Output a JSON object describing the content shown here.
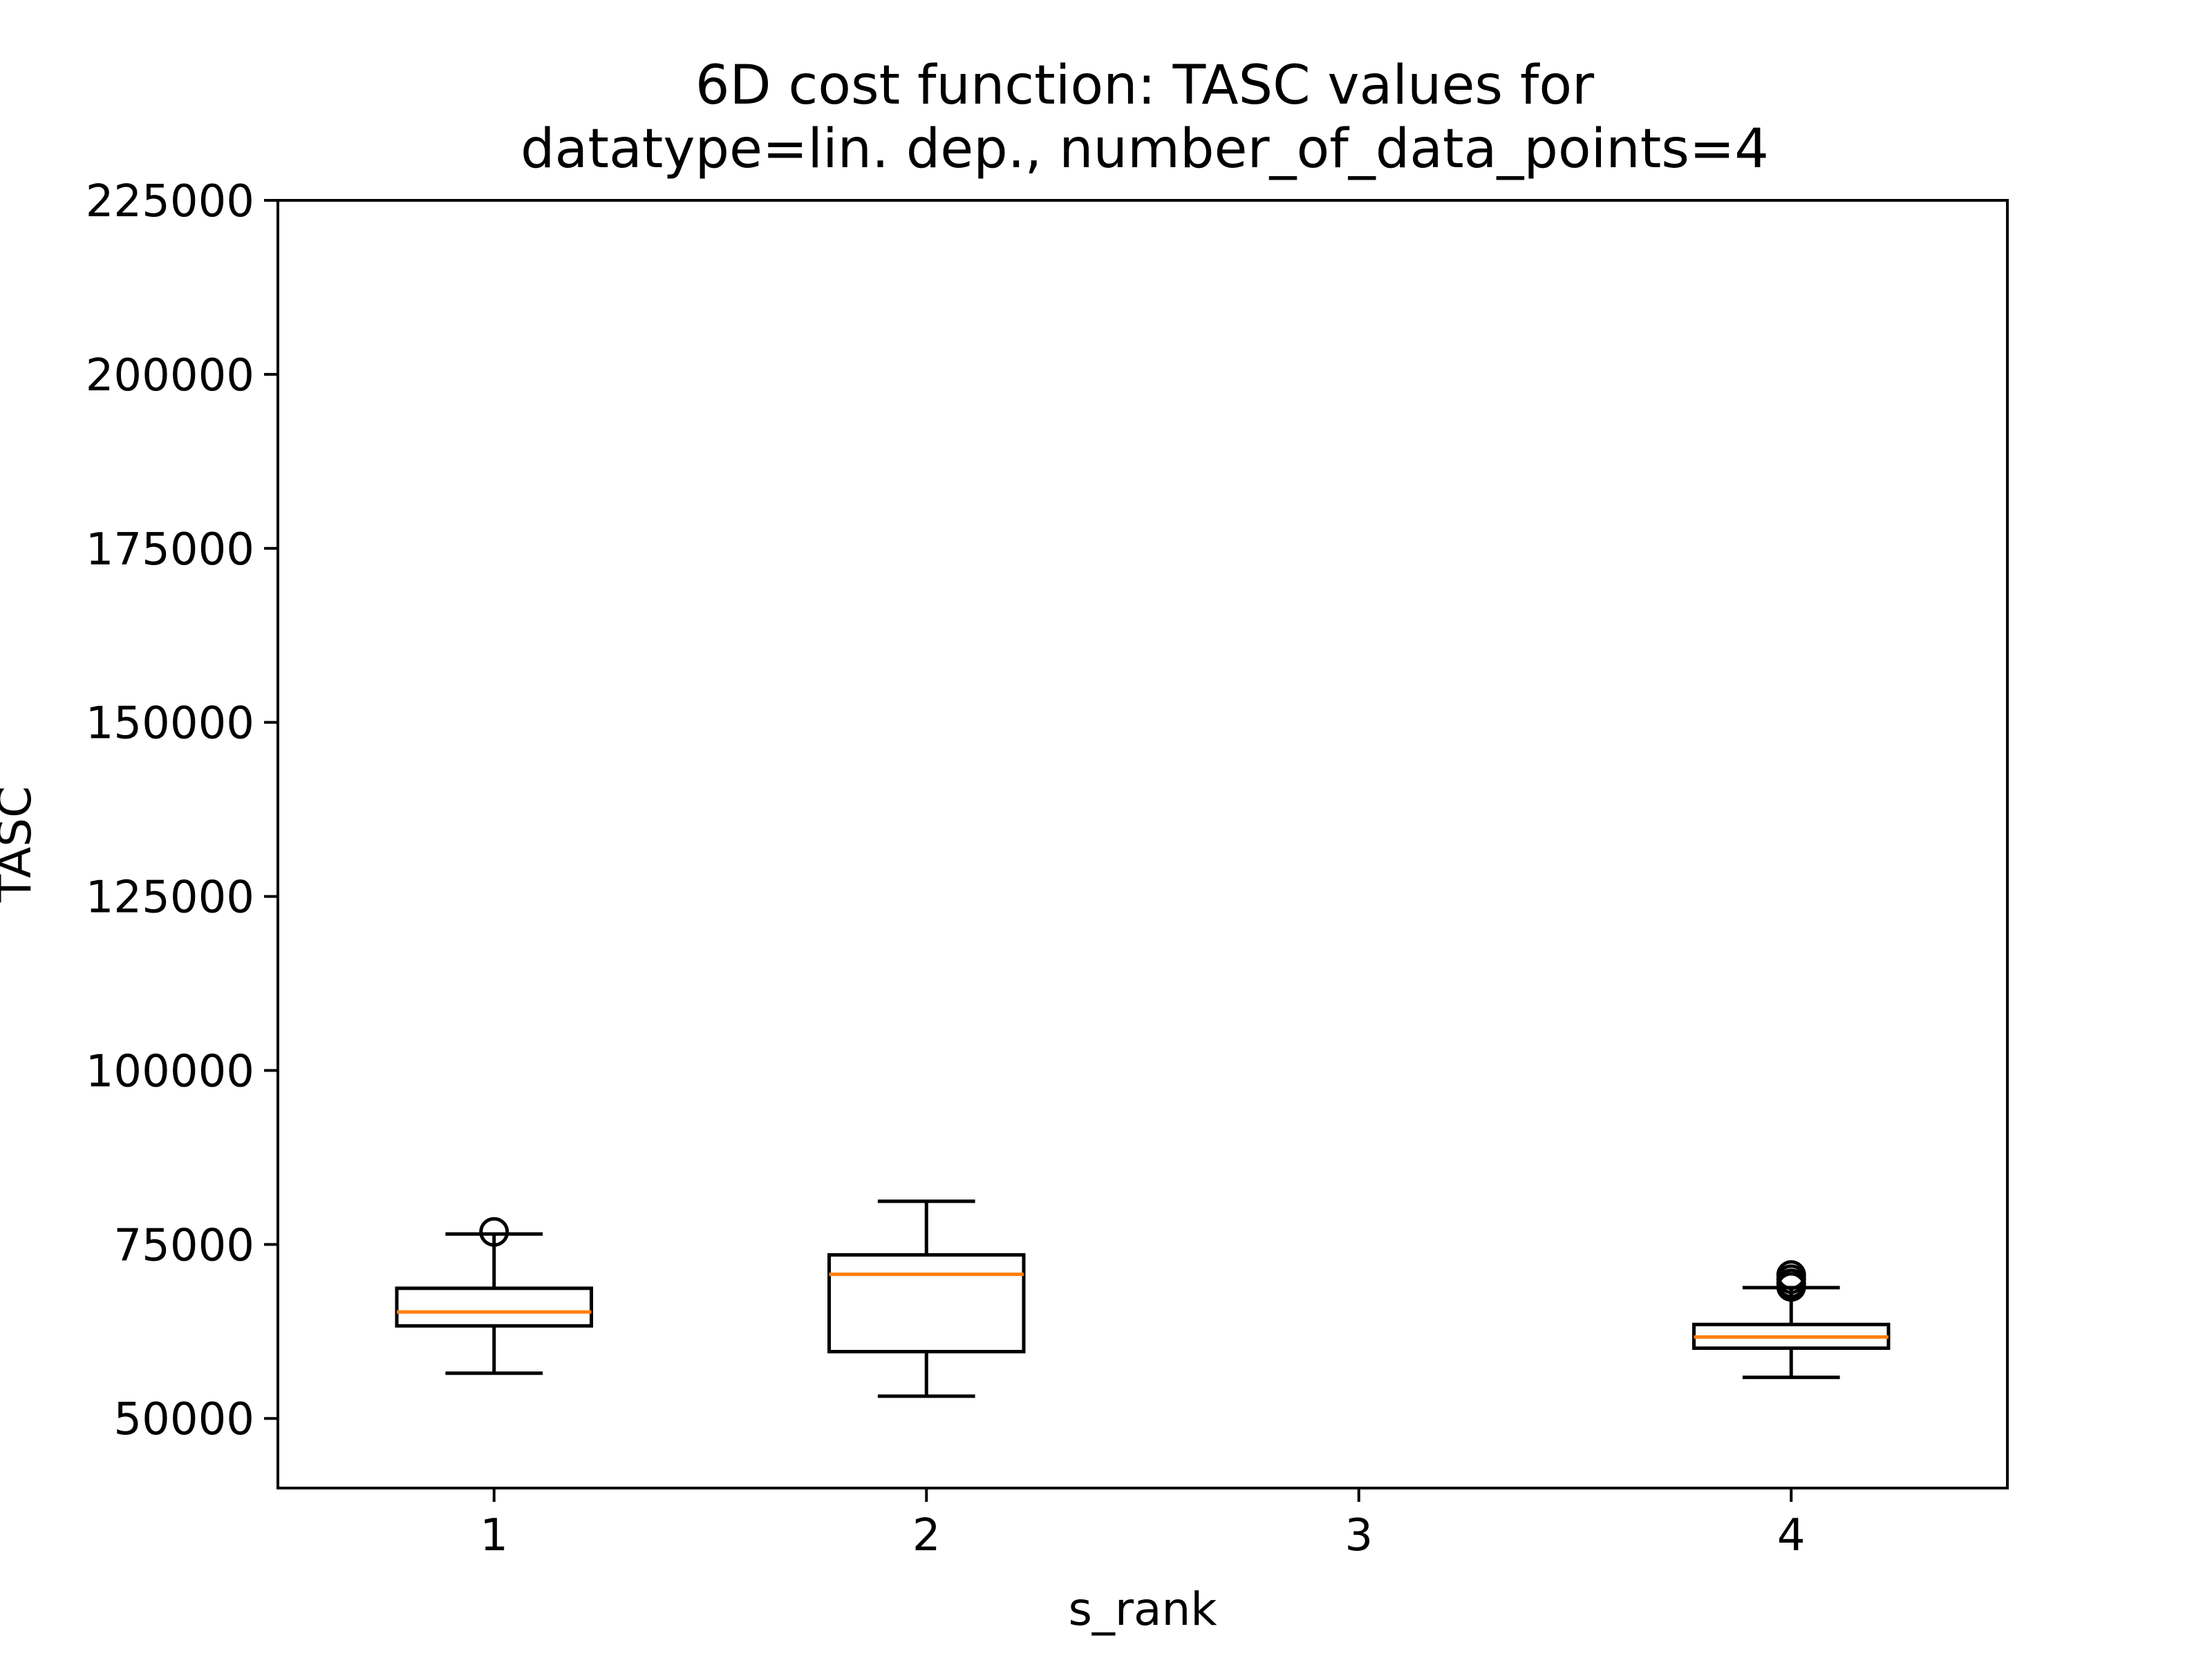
{
  "chart_data": {
    "type": "boxplot",
    "title": [
      "6D cost function: TASC values for",
      "datatype=lin. dep., number_of_data_points=4"
    ],
    "xlabel": "s_rank",
    "ylabel": "TASC",
    "xlim": [
      0.5,
      4.5
    ],
    "ylim": [
      40000,
      225000
    ],
    "yticks": [
      50000,
      75000,
      100000,
      125000,
      150000,
      175000,
      200000,
      225000
    ],
    "ytick_labels": [
      "50000",
      "75000",
      "100000",
      "125000",
      "150000",
      "175000",
      "200000",
      "225000"
    ],
    "xticks": [
      1,
      2,
      3,
      4
    ],
    "xtick_labels": [
      "1",
      "2",
      "3",
      "4"
    ],
    "grid": false,
    "boxes": [
      {
        "x": 1,
        "whisker_low": 56500,
        "q1": 63300,
        "median": 65300,
        "q3": 68700,
        "whisker_high": 76500,
        "outliers": [
          76800
        ]
      },
      {
        "x": 2,
        "whisker_low": 53200,
        "q1": 59600,
        "median": 70700,
        "q3": 73500,
        "whisker_high": 81200,
        "outliers": []
      },
      {
        "x": 4,
        "whisker_low": 55900,
        "q1": 60100,
        "median": 61700,
        "q3": 63500,
        "whisker_high": 68800,
        "outliers": [
          68900,
          69400,
          70000,
          70600
        ]
      }
    ],
    "colors": {
      "box": "#000000",
      "median": "#ff7f0e",
      "axes": "#000000"
    }
  }
}
